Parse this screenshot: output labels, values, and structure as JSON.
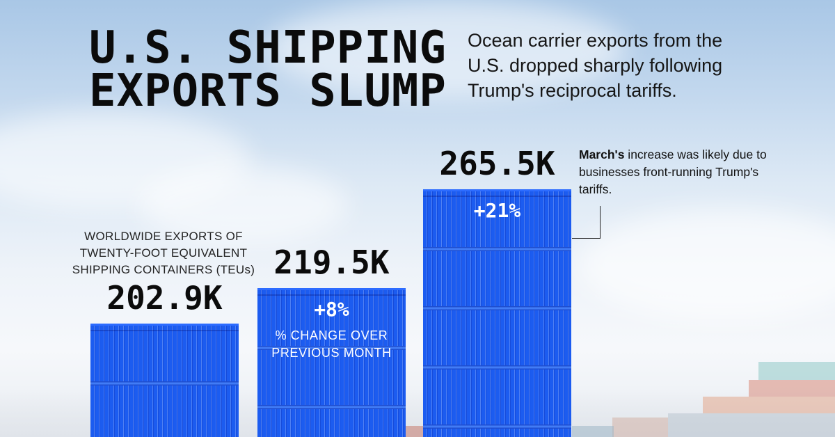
{
  "header": {
    "title_line1": "U.S. SHIPPING",
    "title_line2": "EXPORTS SLUMP",
    "subtitle": "Ocean carrier exports from the U.S. dropped sharply following Trump's reciprocal tariffs."
  },
  "chart_data": {
    "type": "bar",
    "title": "U.S. SHIPPING EXPORTS SLUMP",
    "subtitle": "Ocean carrier exports from the U.S. dropped sharply following Trump's reciprocal tariffs.",
    "ylabel": "WORLDWIDE EXPORTS OF TWENTY-FOOT EQUIVALENT SHIPPING CONTAINERS (TEUs)",
    "ylim": [
      0,
      265.5
    ],
    "values": [
      202.9,
      219.5,
      265.5
    ],
    "value_labels": [
      "202.9K",
      "219.5K",
      "265.5K"
    ],
    "pct_change": [
      null,
      "+8%",
      "+21%"
    ],
    "pct_change_note": "% CHANGE OVER PREVIOUS MONTH",
    "annotation": {
      "bold": "March's",
      "text": " increase was likely due to businesses front-running Trump's tariffs."
    }
  },
  "colors": {
    "bar": "#1c5cf0",
    "text": "#0b0b0b"
  }
}
